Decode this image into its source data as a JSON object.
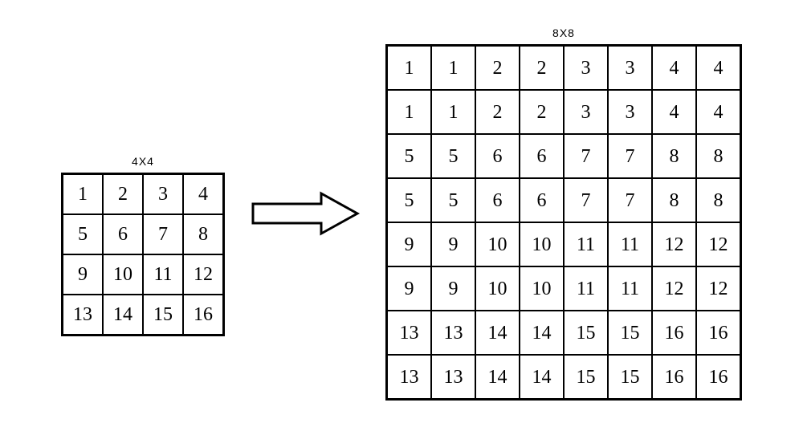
{
  "sourceGrid": {
    "title": "4X4",
    "cols": 4,
    "rows": [
      [
        "1",
        "2",
        "3",
        "4"
      ],
      [
        "5",
        "6",
        "7",
        "8"
      ],
      [
        "9",
        "10",
        "11",
        "12"
      ],
      [
        "13",
        "14",
        "15",
        "16"
      ]
    ],
    "cellSize": 50,
    "border_color": "#000000",
    "font": "Times New Roman",
    "font_size": 24
  },
  "targetGrid": {
    "title": "8X8",
    "cols": 8,
    "rows": [
      [
        "1",
        "1",
        "2",
        "2",
        "3",
        "3",
        "4",
        "4"
      ],
      [
        "1",
        "1",
        "2",
        "2",
        "3",
        "3",
        "4",
        "4"
      ],
      [
        "5",
        "5",
        "6",
        "6",
        "7",
        "7",
        "8",
        "8"
      ],
      [
        "5",
        "5",
        "6",
        "6",
        "7",
        "7",
        "8",
        "8"
      ],
      [
        "9",
        "9",
        "10",
        "10",
        "11",
        "11",
        "12",
        "12"
      ],
      [
        "9",
        "9",
        "10",
        "10",
        "11",
        "11",
        "12",
        "12"
      ],
      [
        "13",
        "13",
        "14",
        "14",
        "15",
        "15",
        "16",
        "16"
      ],
      [
        "13",
        "13",
        "14",
        "14",
        "15",
        "15",
        "16",
        "16"
      ]
    ],
    "cellSize": 55,
    "border_color": "#000000",
    "font": "Times New Roman",
    "font_size": 24
  },
  "arrow": {
    "width": 140,
    "height": 60,
    "stroke": "#000000",
    "fill": "#ffffff",
    "stroke_width": 3
  },
  "title_font": "Arial",
  "title_fontsize": 14,
  "background_color": "#ffffff"
}
